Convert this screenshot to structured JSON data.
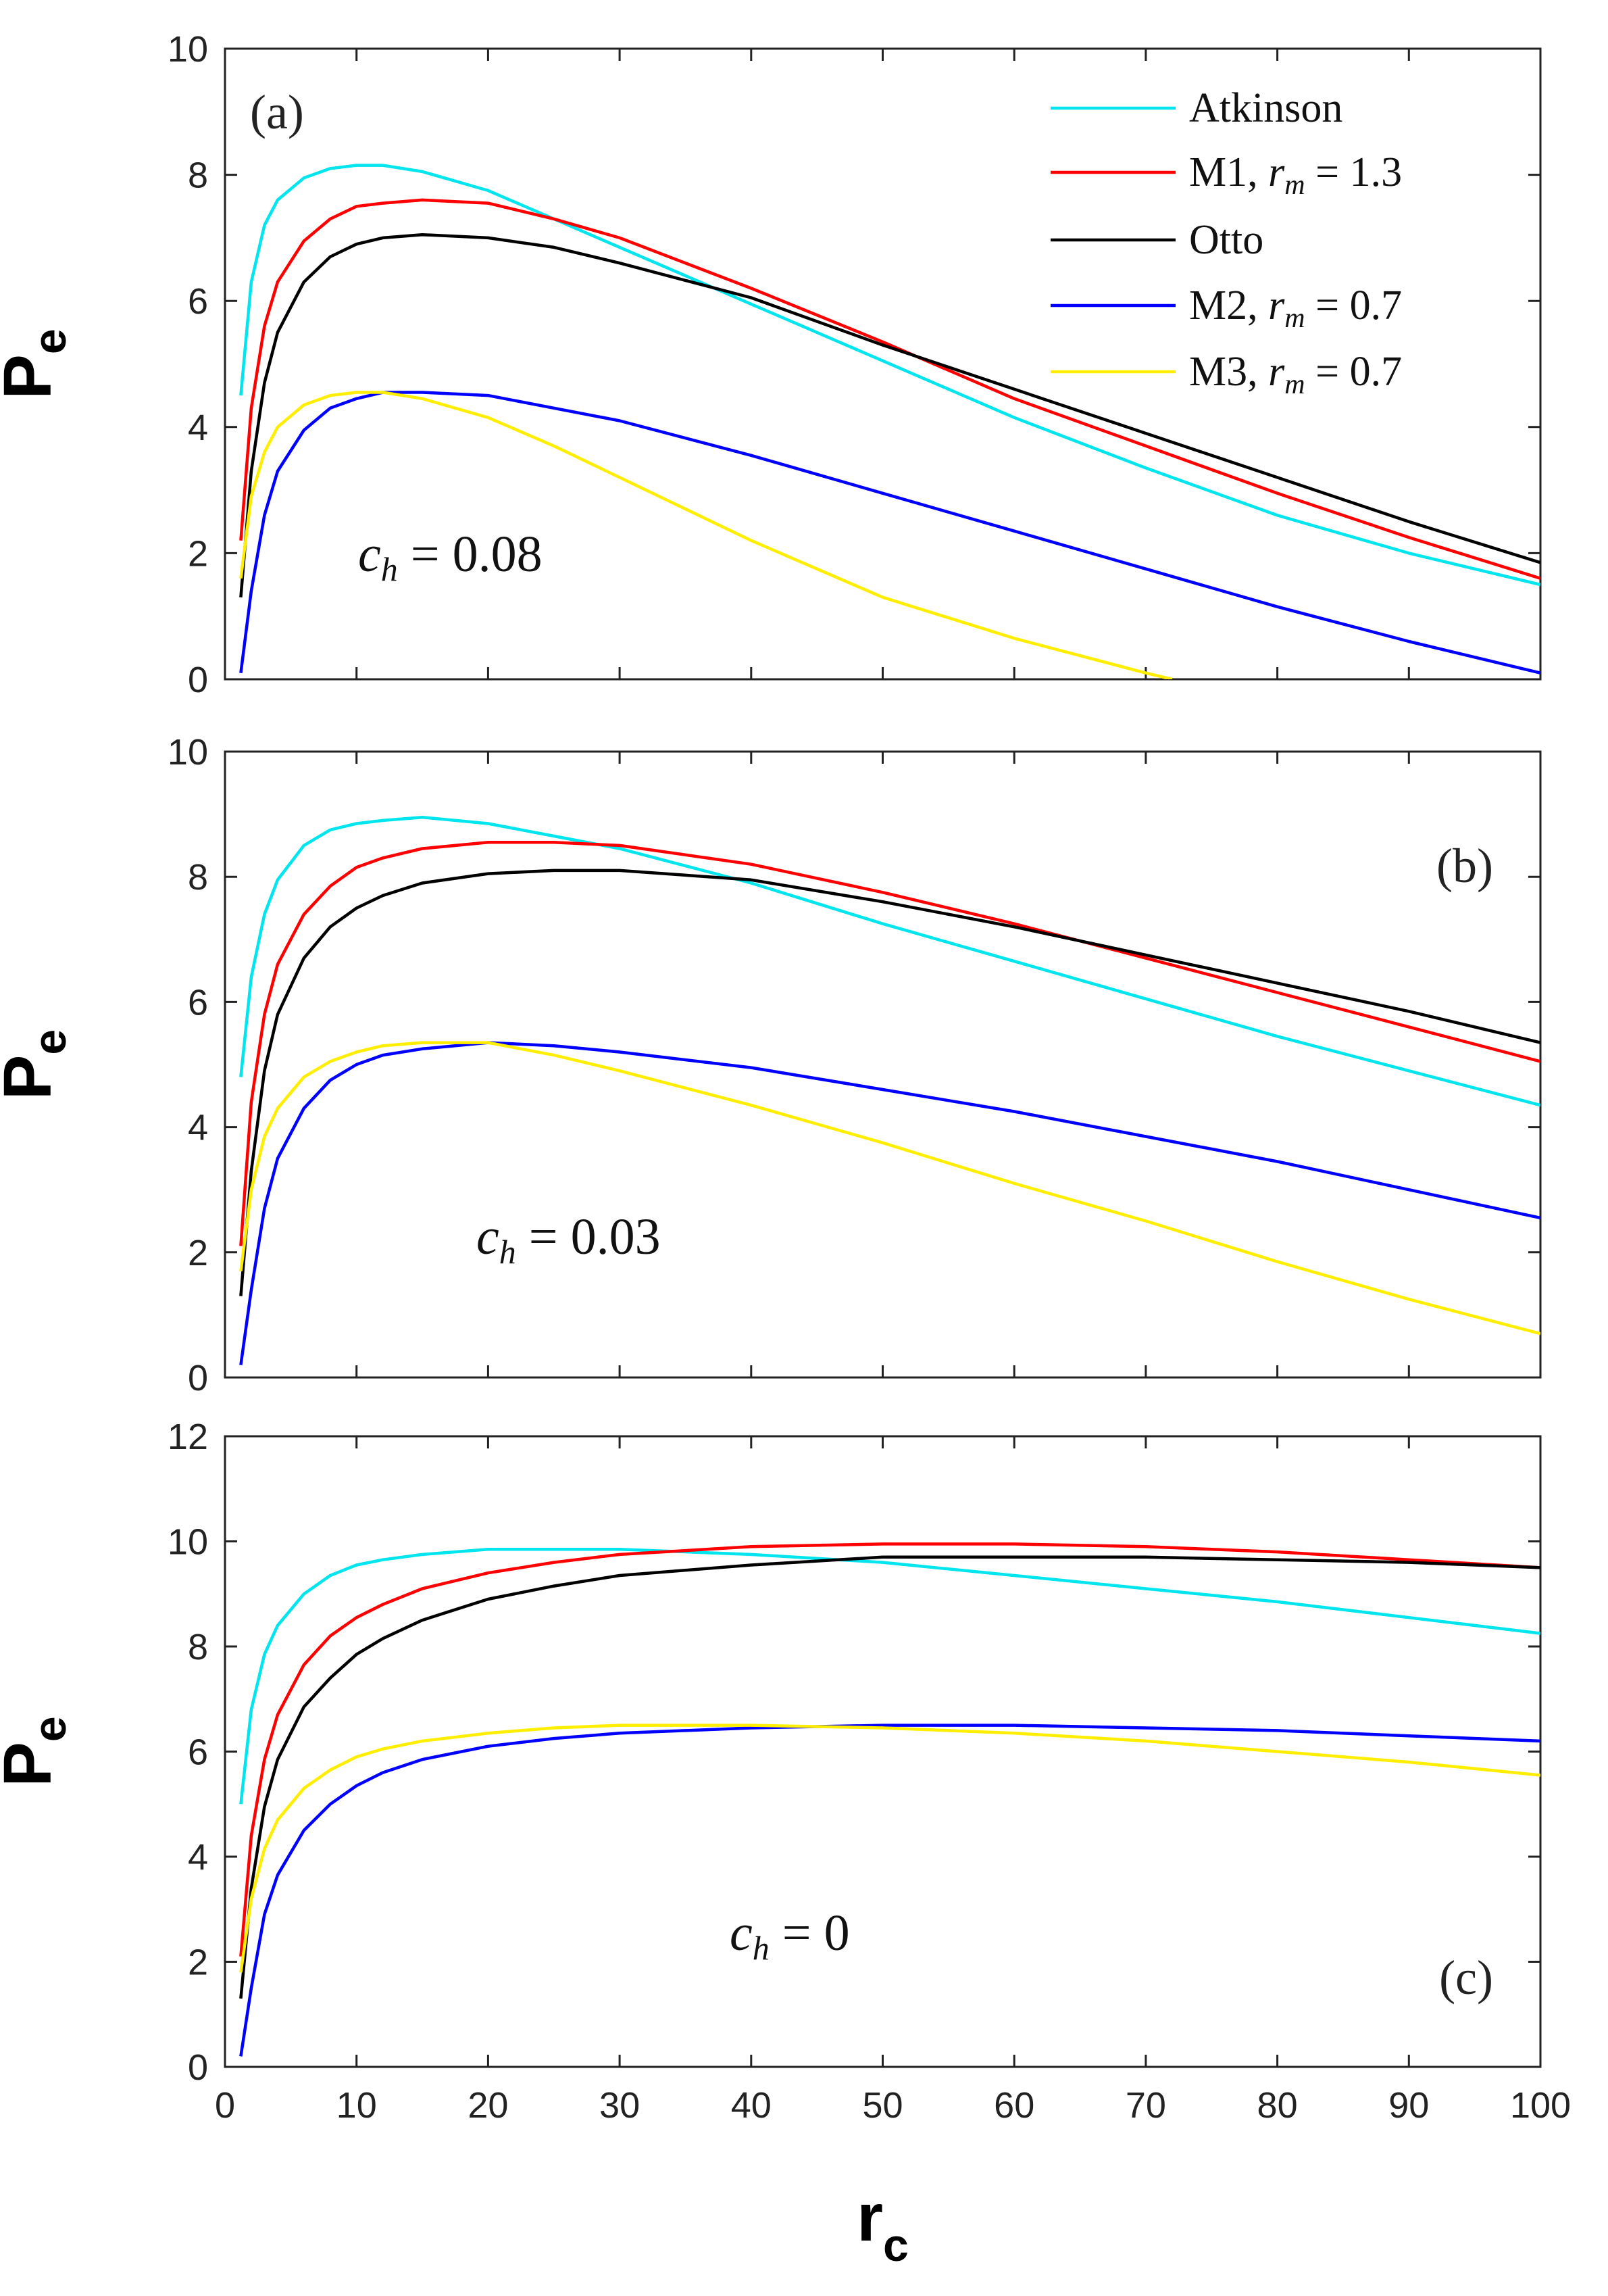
{
  "chart_data": [
    {
      "panel": "(a)",
      "type": "line",
      "annotation": {
        "var": "c",
        "sub": "h",
        "rest": " = 0.08"
      },
      "ylabel": {
        "main": "P",
        "sub": "e"
      },
      "ylim": [
        0,
        10
      ],
      "yticks": [
        0,
        2,
        4,
        6,
        8,
        10
      ],
      "xlim": [
        0,
        100
      ],
      "show_legend": true,
      "series": [
        {
          "name": "Atkinson",
          "color": "#00e5ee",
          "x": [
            1.2,
            2,
            3,
            4,
            6,
            8,
            10,
            12,
            15,
            20,
            25,
            30,
            40,
            50,
            60,
            70,
            80,
            90,
            100
          ],
          "y": [
            4.5,
            6.3,
            7.2,
            7.6,
            7.95,
            8.1,
            8.15,
            8.15,
            8.05,
            7.75,
            7.3,
            6.85,
            5.95,
            5.05,
            4.15,
            3.35,
            2.6,
            2.0,
            1.5
          ]
        },
        {
          "name": "M1, r_m = 1.3",
          "color": "#ff0000",
          "x": [
            1.2,
            2,
            3,
            4,
            6,
            8,
            10,
            12,
            15,
            20,
            25,
            30,
            40,
            50,
            60,
            70,
            80,
            90,
            100
          ],
          "y": [
            2.2,
            4.3,
            5.6,
            6.3,
            6.95,
            7.3,
            7.5,
            7.55,
            7.6,
            7.55,
            7.3,
            7.0,
            6.2,
            5.35,
            4.45,
            3.7,
            2.95,
            2.25,
            1.6
          ]
        },
        {
          "name": "Otto",
          "color": "#000000",
          "x": [
            1.2,
            2,
            3,
            4,
            6,
            8,
            10,
            12,
            15,
            20,
            25,
            30,
            40,
            50,
            60,
            70,
            80,
            90,
            100
          ],
          "y": [
            1.3,
            3.3,
            4.7,
            5.5,
            6.3,
            6.7,
            6.9,
            7.0,
            7.05,
            7.0,
            6.85,
            6.6,
            6.05,
            5.3,
            4.6,
            3.9,
            3.2,
            2.5,
            1.85
          ]
        },
        {
          "name": "M2, r_m = 0.7",
          "color": "#0000ff",
          "x": [
            1.2,
            2,
            3,
            4,
            6,
            8,
            10,
            12,
            15,
            20,
            25,
            30,
            40,
            50,
            60,
            70,
            80,
            90,
            100
          ],
          "y": [
            0.1,
            1.4,
            2.6,
            3.3,
            3.95,
            4.3,
            4.45,
            4.55,
            4.55,
            4.5,
            4.3,
            4.1,
            3.55,
            2.95,
            2.35,
            1.75,
            1.15,
            0.6,
            0.1
          ]
        },
        {
          "name": "M3, r_m = 0.7",
          "color": "#ffee00",
          "x": [
            1.2,
            2,
            3,
            4,
            6,
            8,
            10,
            12,
            15,
            20,
            25,
            30,
            40,
            50,
            60,
            70,
            72
          ],
          "y": [
            1.6,
            2.9,
            3.6,
            4.0,
            4.35,
            4.5,
            4.55,
            4.55,
            4.45,
            4.15,
            3.7,
            3.2,
            2.2,
            1.3,
            0.65,
            0.1,
            0.0
          ]
        }
      ]
    },
    {
      "panel": "(b)",
      "type": "line",
      "annotation": {
        "var": "c",
        "sub": "h",
        "rest": " = 0.03"
      },
      "ylabel": {
        "main": "P",
        "sub": "e"
      },
      "ylim": [
        0,
        10
      ],
      "yticks": [
        0,
        2,
        4,
        6,
        8,
        10
      ],
      "xlim": [
        0,
        100
      ],
      "show_legend": false,
      "series": [
        {
          "name": "Atkinson",
          "color": "#00e5ee",
          "x": [
            1.2,
            2,
            3,
            4,
            6,
            8,
            10,
            12,
            15,
            20,
            25,
            30,
            40,
            50,
            60,
            70,
            80,
            90,
            100
          ],
          "y": [
            4.8,
            6.4,
            7.4,
            7.95,
            8.5,
            8.75,
            8.85,
            8.9,
            8.95,
            8.85,
            8.65,
            8.45,
            7.9,
            7.25,
            6.65,
            6.05,
            5.45,
            4.9,
            4.35
          ]
        },
        {
          "name": "M1, r_m = 1.3",
          "color": "#ff0000",
          "x": [
            1.2,
            2,
            3,
            4,
            6,
            8,
            10,
            12,
            15,
            20,
            25,
            30,
            40,
            50,
            60,
            70,
            80,
            90,
            100
          ],
          "y": [
            2.1,
            4.4,
            5.8,
            6.6,
            7.4,
            7.85,
            8.15,
            8.3,
            8.45,
            8.55,
            8.55,
            8.5,
            8.2,
            7.75,
            7.25,
            6.7,
            6.15,
            5.6,
            5.05
          ]
        },
        {
          "name": "Otto",
          "color": "#000000",
          "x": [
            1.2,
            2,
            3,
            4,
            6,
            8,
            10,
            12,
            15,
            20,
            25,
            30,
            40,
            50,
            60,
            70,
            80,
            90,
            100
          ],
          "y": [
            1.3,
            3.3,
            4.9,
            5.8,
            6.7,
            7.2,
            7.5,
            7.7,
            7.9,
            8.05,
            8.1,
            8.1,
            7.95,
            7.6,
            7.2,
            6.75,
            6.3,
            5.85,
            5.35
          ]
        },
        {
          "name": "M2, r_m = 0.7",
          "color": "#0000ff",
          "x": [
            1.2,
            2,
            3,
            4,
            6,
            8,
            10,
            12,
            15,
            20,
            25,
            30,
            40,
            50,
            60,
            70,
            80,
            90,
            100
          ],
          "y": [
            0.2,
            1.4,
            2.7,
            3.5,
            4.3,
            4.75,
            5.0,
            5.15,
            5.25,
            5.35,
            5.3,
            5.2,
            4.95,
            4.6,
            4.25,
            3.85,
            3.45,
            3.0,
            2.55
          ]
        },
        {
          "name": "M3, r_m = 0.7",
          "color": "#ffee00",
          "x": [
            1.2,
            2,
            3,
            4,
            6,
            8,
            10,
            12,
            15,
            20,
            25,
            30,
            40,
            50,
            60,
            70,
            80,
            90,
            100
          ],
          "y": [
            1.7,
            3.0,
            3.85,
            4.3,
            4.8,
            5.05,
            5.2,
            5.3,
            5.35,
            5.35,
            5.15,
            4.9,
            4.35,
            3.75,
            3.1,
            2.5,
            1.85,
            1.25,
            0.7
          ]
        }
      ]
    },
    {
      "panel": "(c)",
      "type": "line",
      "annotation": {
        "var": "c",
        "sub": "h",
        "rest": " = 0"
      },
      "ylabel": {
        "main": "P",
        "sub": "e"
      },
      "ylim": [
        0,
        12
      ],
      "yticks": [
        0,
        2,
        4,
        6,
        8,
        10,
        12
      ],
      "xlim": [
        0,
        100
      ],
      "xticks": [
        0,
        10,
        20,
        30,
        40,
        50,
        60,
        70,
        80,
        90,
        100
      ],
      "xlabel": {
        "main": "r",
        "sub": "c"
      },
      "show_legend": false,
      "series": [
        {
          "name": "Atkinson",
          "color": "#00e5ee",
          "x": [
            1.2,
            2,
            3,
            4,
            6,
            8,
            10,
            12,
            15,
            20,
            25,
            30,
            40,
            50,
            60,
            70,
            80,
            90,
            100
          ],
          "y": [
            5.0,
            6.8,
            7.85,
            8.4,
            9.0,
            9.35,
            9.55,
            9.65,
            9.75,
            9.85,
            9.85,
            9.85,
            9.75,
            9.6,
            9.35,
            9.1,
            8.85,
            8.55,
            8.25
          ]
        },
        {
          "name": "M1, r_m = 1.3",
          "color": "#ff0000",
          "x": [
            1.2,
            2,
            3,
            4,
            6,
            8,
            10,
            12,
            15,
            20,
            25,
            30,
            40,
            50,
            60,
            70,
            80,
            90,
            100
          ],
          "y": [
            2.1,
            4.4,
            5.85,
            6.7,
            7.65,
            8.2,
            8.55,
            8.8,
            9.1,
            9.4,
            9.6,
            9.75,
            9.9,
            9.95,
            9.95,
            9.9,
            9.8,
            9.65,
            9.5
          ]
        },
        {
          "name": "Otto",
          "color": "#000000",
          "x": [
            1.2,
            2,
            3,
            4,
            6,
            8,
            10,
            12,
            15,
            20,
            25,
            30,
            40,
            50,
            60,
            70,
            80,
            90,
            100
          ],
          "y": [
            1.3,
            3.4,
            4.95,
            5.85,
            6.85,
            7.4,
            7.85,
            8.15,
            8.5,
            8.9,
            9.15,
            9.35,
            9.55,
            9.7,
            9.7,
            9.7,
            9.65,
            9.6,
            9.5
          ]
        },
        {
          "name": "M2, r_m = 0.7",
          "color": "#0000ff",
          "x": [
            1.2,
            2,
            3,
            4,
            6,
            8,
            10,
            12,
            15,
            20,
            25,
            30,
            40,
            50,
            60,
            70,
            80,
            90,
            100
          ],
          "y": [
            0.2,
            1.5,
            2.9,
            3.65,
            4.5,
            5.0,
            5.35,
            5.6,
            5.85,
            6.1,
            6.25,
            6.35,
            6.45,
            6.5,
            6.5,
            6.45,
            6.4,
            6.3,
            6.2
          ]
        },
        {
          "name": "M3, r_m = 0.7",
          "color": "#ffee00",
          "x": [
            1.2,
            2,
            3,
            4,
            6,
            8,
            10,
            12,
            15,
            20,
            25,
            30,
            40,
            50,
            60,
            70,
            80,
            90,
            100
          ],
          "y": [
            1.8,
            3.2,
            4.15,
            4.7,
            5.3,
            5.65,
            5.9,
            6.05,
            6.2,
            6.35,
            6.45,
            6.5,
            6.5,
            6.45,
            6.35,
            6.2,
            6.0,
            5.8,
            5.55
          ]
        }
      ]
    }
  ],
  "legend": [
    {
      "text": "Atkinson",
      "color": "#00e5ee"
    },
    {
      "text": "M1, ",
      "var": "r",
      "sub": "m",
      "rest": " = 1.3",
      "color": "#ff0000"
    },
    {
      "text": "Otto",
      "color": "#000000"
    },
    {
      "text": "M2, ",
      "var": "r",
      "sub": "m",
      "rest": " = 0.7",
      "color": "#0000ff"
    },
    {
      "text": "M3, ",
      "var": "r",
      "sub": "m",
      "rest": " = 0.7",
      "color": "#ffee00"
    }
  ]
}
